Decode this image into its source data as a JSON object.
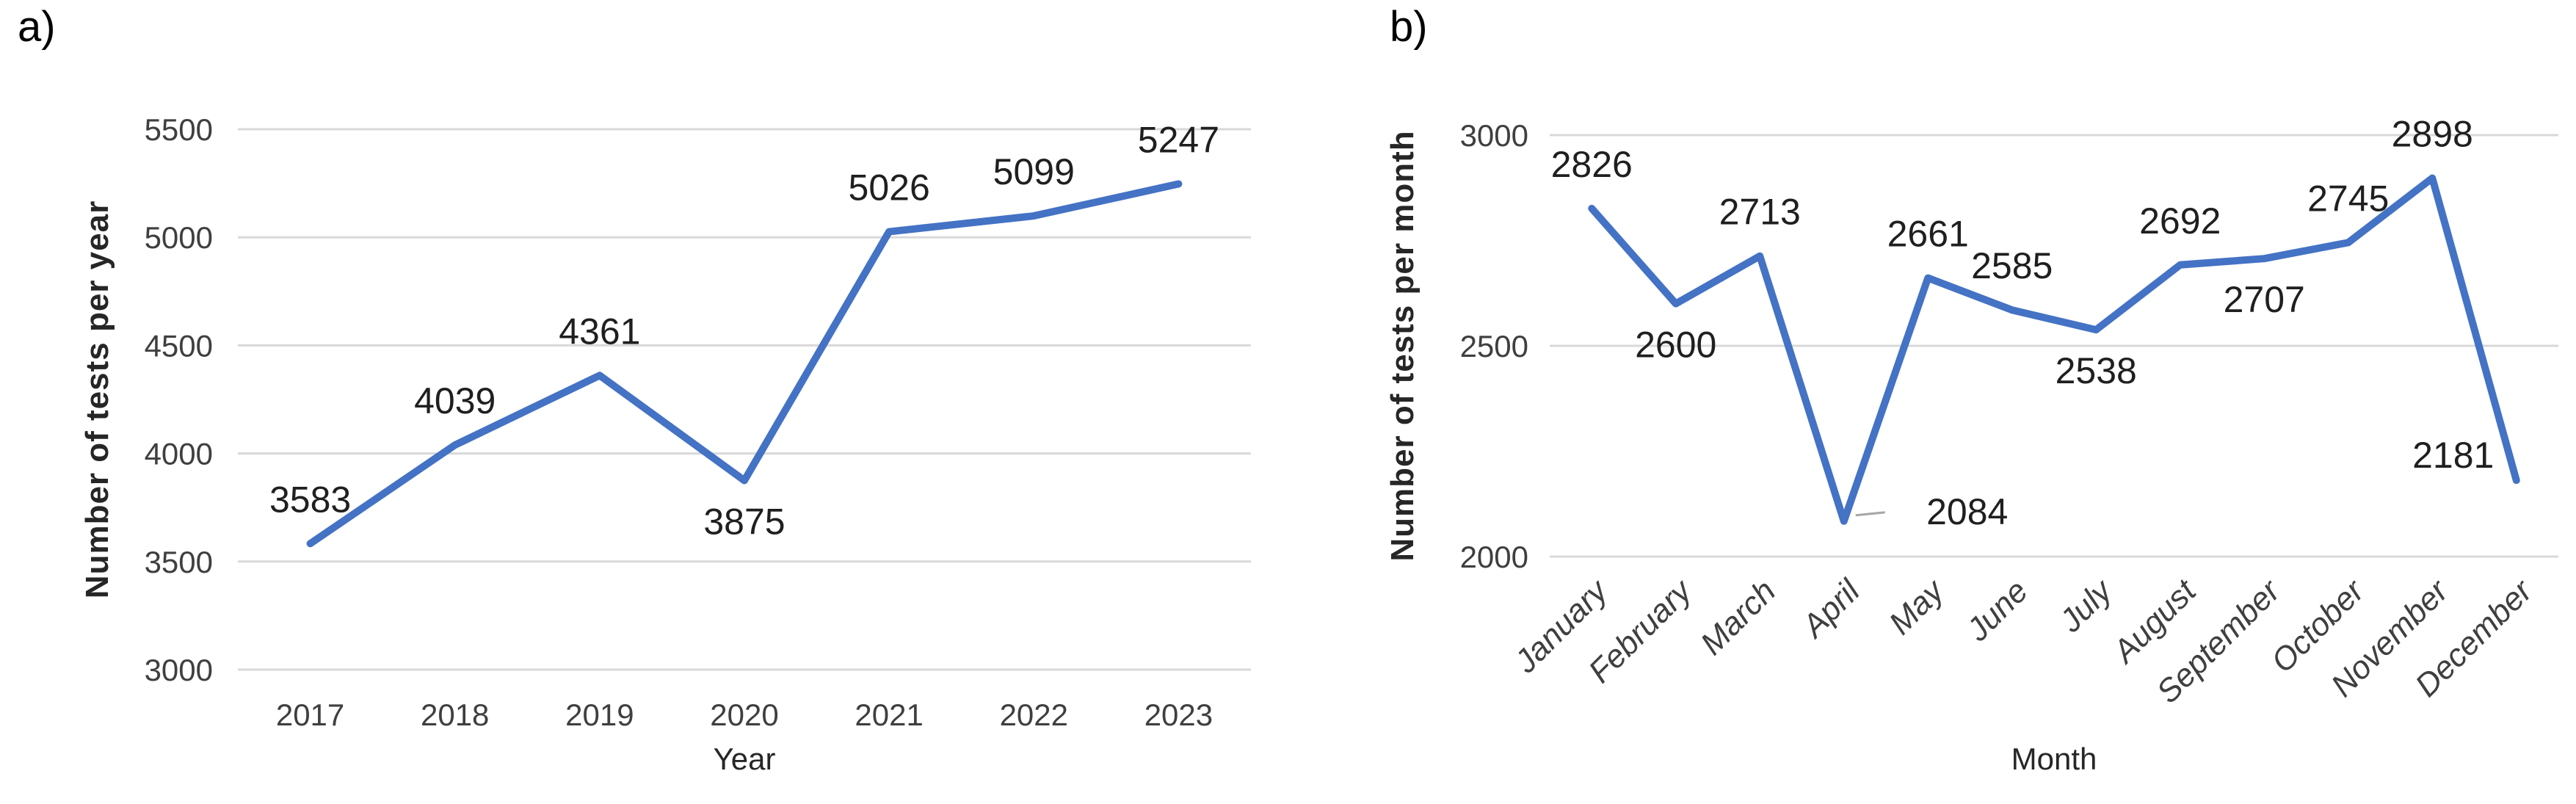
{
  "figure": {
    "background_color": "#FFFFFF",
    "line_color": "#4472C4",
    "gridline_color": "#D9D9D9",
    "leader_line_color": "#A6A6A6",
    "tick_label_color": "#3F3F3F",
    "data_label_color": "#1F1F1F",
    "axis_title_color": "#262626"
  },
  "chart_data": [
    {
      "type": "line",
      "panel_label": "a)",
      "title": "",
      "xlabel": "Year",
      "ylabel": "Number of tests per year",
      "categories": [
        "2017",
        "2018",
        "2019",
        "2020",
        "2021",
        "2022",
        "2023"
      ],
      "values": [
        3583,
        4039,
        4361,
        3875,
        5026,
        5099,
        5247
      ],
      "data_labels": [
        "3583",
        "4039",
        "4361",
        "3875",
        "5026",
        "5099",
        "5247"
      ],
      "data_label_positions": [
        "above",
        "above",
        "above",
        "below",
        "above",
        "above",
        "above"
      ],
      "ylim": [
        3000,
        5500
      ],
      "ytick_step": 500,
      "ytick_labels": [
        "3000",
        "3500",
        "4000",
        "4500",
        "5000",
        "5500"
      ],
      "grid": true,
      "legend": "none",
      "x_tick_rotation": 0,
      "x_tick_italic": false
    },
    {
      "type": "line",
      "panel_label": "b)",
      "title": "",
      "xlabel": "Month",
      "ylabel": "Number of tests per month",
      "categories": [
        "January",
        "February",
        "March",
        "April",
        "May",
        "June",
        "July",
        "August",
        "September",
        "October",
        "November",
        "December"
      ],
      "values": [
        2826,
        2600,
        2713,
        2084,
        2661,
        2585,
        2538,
        2692,
        2707,
        2745,
        2898,
        2181
      ],
      "data_labels": [
        "2826",
        "2600",
        "2713",
        "2084",
        "2661",
        "2585",
        "2538",
        "2692",
        "2707",
        "2745",
        "2898",
        "2181"
      ],
      "data_label_positions": [
        "above",
        "below",
        "above",
        "right-leader",
        "above",
        "above",
        "below",
        "above",
        "below",
        "above",
        "above",
        "left"
      ],
      "ylim": [
        2000,
        3000
      ],
      "ytick_step": 500,
      "ytick_labels": [
        "2000",
        "2500",
        "3000"
      ],
      "grid": true,
      "legend": "none",
      "x_tick_rotation": -45,
      "x_tick_italic": true
    }
  ]
}
